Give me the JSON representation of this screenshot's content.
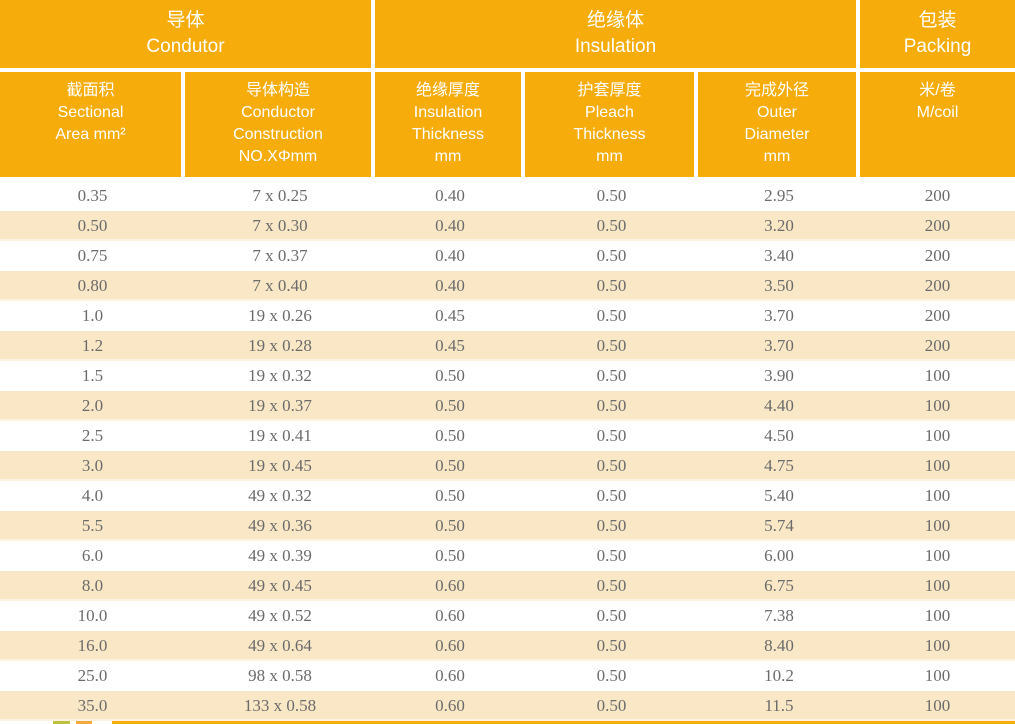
{
  "table": {
    "header_groups": [
      {
        "zh": "导体",
        "en": "Condutor",
        "span": 2
      },
      {
        "zh": "绝缘体",
        "en": "Insulation",
        "span": 3
      },
      {
        "zh": "包装",
        "en": "Packing",
        "span": 1
      }
    ],
    "columns": [
      {
        "lines": [
          "截面积",
          "Sectional",
          "Area mm²"
        ]
      },
      {
        "lines": [
          "导体构造",
          "Conductor",
          "Construction",
          "NO.XΦmm"
        ]
      },
      {
        "lines": [
          "绝缘厚度",
          "Insulation",
          "Thickness",
          "mm"
        ]
      },
      {
        "lines": [
          "护套厚度",
          "Pleach",
          "Thickness",
          "mm"
        ]
      },
      {
        "lines": [
          "完成外径",
          "Outer",
          "Diameter",
          "mm"
        ]
      },
      {
        "lines": [
          "米/卷",
          "M/coil"
        ]
      }
    ],
    "rows": [
      [
        "0.35",
        "7 x 0.25",
        "0.40",
        "0.50",
        "2.95",
        "200"
      ],
      [
        "0.50",
        "7 x 0.30",
        "0.40",
        "0.50",
        "3.20",
        "200"
      ],
      [
        "0.75",
        "7 x 0.37",
        "0.40",
        "0.50",
        "3.40",
        "200"
      ],
      [
        "0.80",
        "7 x 0.40",
        "0.40",
        "0.50",
        "3.50",
        "200"
      ],
      [
        "1.0",
        "19 x 0.26",
        "0.45",
        "0.50",
        "3.70",
        "200"
      ],
      [
        "1.2",
        "19 x 0.28",
        "0.45",
        "0.50",
        "3.70",
        "200"
      ],
      [
        "1.5",
        "19 x 0.32",
        "0.50",
        "0.50",
        "3.90",
        "100"
      ],
      [
        "2.0",
        "19 x 0.37",
        "0.50",
        "0.50",
        "4.40",
        "100"
      ],
      [
        "2.5",
        "19 x 0.41",
        "0.50",
        "0.50",
        "4.50",
        "100"
      ],
      [
        "3.0",
        "19 x 0.45",
        "0.50",
        "0.50",
        "4.75",
        "100"
      ],
      [
        "4.0",
        "49 x 0.32",
        "0.50",
        "0.50",
        "5.40",
        "100"
      ],
      [
        "5.5",
        "49 x 0.36",
        "0.50",
        "0.50",
        "5.74",
        "100"
      ],
      [
        "6.0",
        "49 x 0.39",
        "0.50",
        "0.50",
        "6.00",
        "100"
      ],
      [
        "8.0",
        "49 x 0.45",
        "0.60",
        "0.50",
        "6.75",
        "100"
      ],
      [
        "10.0",
        "49 x 0.52",
        "0.60",
        "0.50",
        "7.38",
        "100"
      ],
      [
        "16.0",
        "49 x 0.64",
        "0.60",
        "0.50",
        "8.40",
        "100"
      ],
      [
        "25.0",
        "98 x 0.58",
        "0.60",
        "0.50",
        "10.2",
        "100"
      ],
      [
        "35.0",
        "133 x 0.58",
        "0.60",
        "0.50",
        "11.5",
        "100"
      ]
    ]
  },
  "colors": {
    "header_bg": "#F6AC0A",
    "stripe_bg": "#FAE7C5",
    "header_text": "#FFFFFF",
    "data_text": "#6B6B6B",
    "footer_bar": "#F6AC0A",
    "speck_green": "#BCC23D",
    "speck_orange": "#F2A93E"
  }
}
